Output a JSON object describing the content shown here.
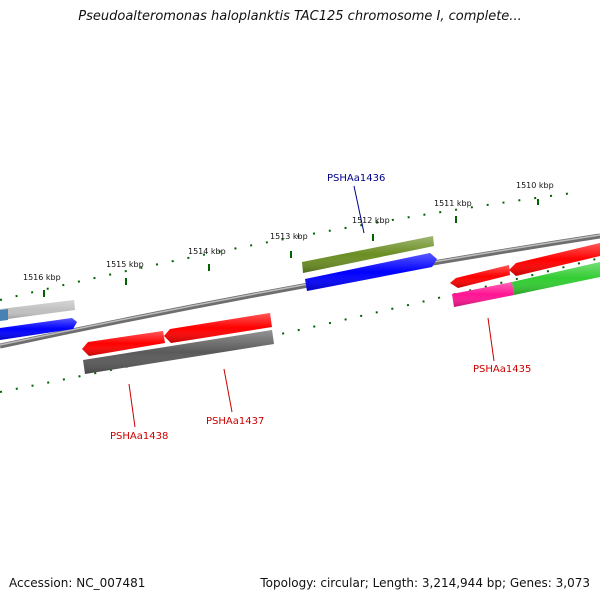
{
  "title": "Pseudoalteromonas haloplanktis TAC125 chromosome I, complete...",
  "footer": {
    "accession": "Accession: NC_007481",
    "stats": "Topology: circular; Length: 3,214,944 bp; Genes: 3,073"
  },
  "tick_labels": [
    "1510 kbp",
    "1511 kbp",
    "1512 kbp",
    "1513 kbp",
    "1514 kbp",
    "1515 kbp",
    "1516 kbp"
  ],
  "gene_labels": [
    {
      "name": "PSHAa1436",
      "color": "#00008b"
    },
    {
      "name": "PSHAa1435",
      "color": "#cc0000"
    },
    {
      "name": "PSHAa1437",
      "color": "#cc0000"
    },
    {
      "name": "PSHAa1438",
      "color": "#cc0000"
    }
  ],
  "colors": {
    "tick": "#006400",
    "backbone": "#7f7f7f",
    "red": "#ff0000",
    "blue": "#0000ff",
    "olive": "#6b8e23",
    "gray": "#5a5a5a",
    "lightgray": "#c0c0c0",
    "magenta": "#ff1493",
    "green": "#32cd32"
  }
}
